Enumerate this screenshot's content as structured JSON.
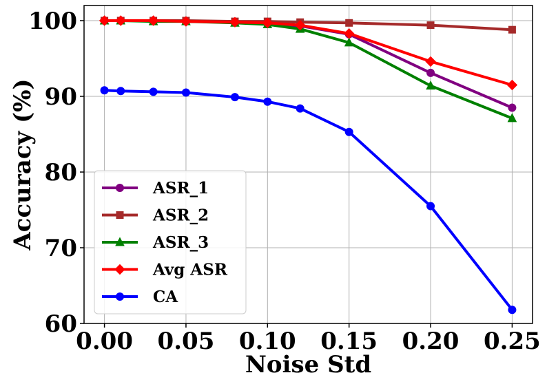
{
  "chart_data": {
    "type": "line",
    "title": "",
    "xlabel": "Noise Std",
    "ylabel": "Accuracy (%)",
    "x": [
      0.0,
      0.01,
      0.03,
      0.05,
      0.08,
      0.1,
      0.12,
      0.15,
      0.2,
      0.25
    ],
    "xlim": [
      -0.0125,
      0.2625
    ],
    "ylim": [
      60,
      102
    ],
    "xticks": [
      0.0,
      0.05,
      0.1,
      0.15,
      0.2,
      0.25
    ],
    "xtick_labels": [
      "0.00",
      "0.05",
      "0.10",
      "0.15",
      "0.20",
      "0.25"
    ],
    "yticks": [
      60,
      70,
      80,
      90,
      100
    ],
    "ytick_labels": [
      "60",
      "70",
      "80",
      "90",
      "100"
    ],
    "grid": true,
    "legend_position": "lower-left",
    "series": [
      {
        "name": "ASR_1",
        "color": "#800080",
        "marker": "circle",
        "values": [
          100.0,
          100.0,
          100.0,
          99.9,
          99.8,
          99.6,
          99.3,
          98.2,
          93.1,
          88.5
        ]
      },
      {
        "name": "ASR_2",
        "color": "#a52a2a",
        "marker": "square",
        "values": [
          100.0,
          100.0,
          100.0,
          100.0,
          99.9,
          99.9,
          99.8,
          99.7,
          99.4,
          98.8
        ]
      },
      {
        "name": "ASR_3",
        "color": "#008000",
        "marker": "triangle",
        "values": [
          100.0,
          100.0,
          99.9,
          99.9,
          99.7,
          99.5,
          98.9,
          97.1,
          91.4,
          87.1
        ]
      },
      {
        "name": "Avg ASR",
        "color": "#ff0000",
        "marker": "diamond",
        "values": [
          100.0,
          100.0,
          100.0,
          99.9,
          99.8,
          99.7,
          99.4,
          98.3,
          94.6,
          91.5
        ]
      },
      {
        "name": "CA",
        "color": "#0000ff",
        "marker": "circle",
        "values": [
          90.8,
          90.7,
          90.6,
          90.5,
          89.9,
          89.3,
          88.4,
          85.3,
          75.5,
          61.8
        ]
      }
    ]
  }
}
